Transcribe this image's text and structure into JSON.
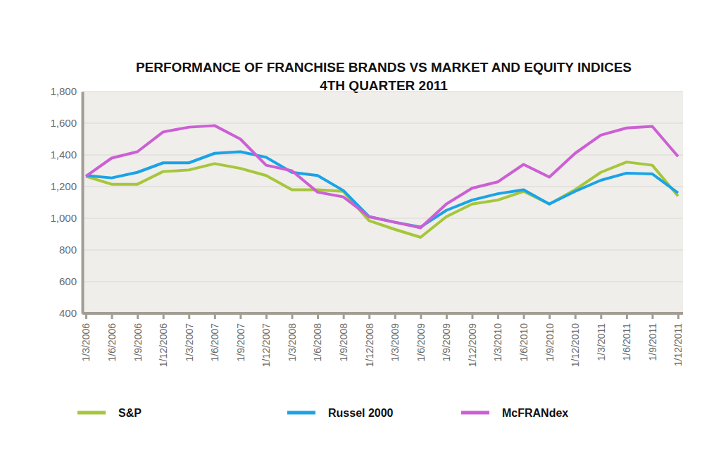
{
  "chart_data": {
    "type": "line",
    "title": "PERFORMANCE OF FRANCHISE BRANDS VS MARKET AND EQUITY INDICES",
    "subtitle": "4TH QUARTER 2011",
    "categories": [
      "1/3/2006",
      "1/6/2006",
      "1/9/2006",
      "1/12/2006",
      "1/3/2007",
      "1/6/2007",
      "1/9/2007",
      "1/12/2007",
      "1/3/2008",
      "1/6/2008",
      "1/9/2008",
      "1/12/2008",
      "1/3/2009",
      "1/6/2009",
      "1/9/2009",
      "1/12/2009",
      "1/3/2010",
      "1/6/2010",
      "1/9/2010",
      "1/12/2010",
      "1/3/2011",
      "1/6/2011",
      "1/9/2011",
      "1/12/2011"
    ],
    "series": [
      {
        "name": "S&P",
        "color": "#a6c63b",
        "values": [
          1265,
          1215,
          1215,
          1295,
          1305,
          1345,
          1315,
          1270,
          1180,
          1180,
          1170,
          985,
          930,
          880,
          1010,
          1090,
          1115,
          1170,
          1090,
          1180,
          1290,
          1355,
          1335,
          1140
        ]
      },
      {
        "name": "Russel 2000",
        "color": "#1ba3e6",
        "values": [
          1270,
          1255,
          1290,
          1350,
          1350,
          1410,
          1420,
          1385,
          1290,
          1270,
          1175,
          1010,
          975,
          945,
          1050,
          1115,
          1155,
          1180,
          1090,
          1170,
          1240,
          1285,
          1280,
          1160
        ]
      },
      {
        "name": "McFRANdex",
        "color": "#cc5fd5",
        "values": [
          1265,
          1380,
          1420,
          1545,
          1575,
          1585,
          1500,
          1335,
          1300,
          1165,
          1135,
          1010,
          975,
          940,
          1090,
          1190,
          1230,
          1340,
          1260,
          1410,
          1525,
          1570,
          1580,
          1390
        ]
      }
    ],
    "ylim": [
      400,
      1800
    ],
    "yticks": [
      400,
      600,
      800,
      {
        "value": 1000,
        "label": "1,000"
      },
      {
        "value": 1200,
        "label": "1,200"
      },
      {
        "value": 1400,
        "label": "1,400"
      },
      {
        "value": 1600,
        "label": "1,600"
      },
      {
        "value": 1800,
        "label": "1,800"
      }
    ],
    "grid": true,
    "legend": "bottom"
  }
}
